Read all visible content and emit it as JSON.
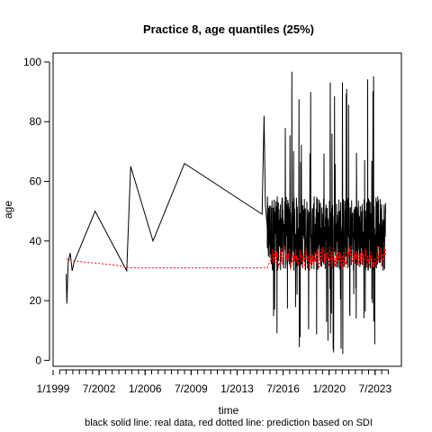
{
  "chart_data": {
    "type": "line",
    "title": "Practice 8, age quantiles (25%)",
    "xlabel": "time",
    "ylabel": "age",
    "caption": "black solid line: real data, red dotted line: prediction based on SDI",
    "xlim": [
      1999.0,
      2025.5
    ],
    "ylim": [
      -2,
      103
    ],
    "y_ticks": [
      0,
      20,
      40,
      60,
      80,
      100
    ],
    "x_ticks": [
      {
        "value": 1999.0,
        "label": "1/1999"
      },
      {
        "value": 2002.5,
        "label": "7/2002"
      },
      {
        "value": 2006.0,
        "label": "1/2006"
      },
      {
        "value": 2009.5,
        "label": "7/2009"
      },
      {
        "value": 2013.0,
        "label": "1/2013"
      },
      {
        "value": 2016.5,
        "label": "7/2016"
      },
      {
        "value": 2020.0,
        "label": "1/2020"
      },
      {
        "value": 2023.5,
        "label": "7/2023"
      }
    ],
    "series": [
      {
        "color": "#000000",
        "style": "solid",
        "dense_region": {
          "x_start": 2015.3,
          "x_end": 2024.3,
          "y_center": 41,
          "y_low_typical": 30,
          "y_high_typical": 55,
          "y_min": 1,
          "y_max": 97
        },
        "x": [
          2000.0,
          2000.05,
          2000.15,
          2000.3,
          2000.45,
          2000.6,
          2002.2,
          2004.6,
          2004.9,
          2006.6,
          2009.0,
          2014.9,
          2015.05,
          2015.15,
          2015.25,
          2015.3
        ],
        "y": [
          29,
          19,
          33,
          36,
          30,
          33,
          50,
          30,
          65,
          40,
          66,
          49,
          82,
          52,
          47,
          44
        ]
      },
      {
        "color": "#ff0000",
        "style": "dotted",
        "dense_region": {
          "x_start": 2015.6,
          "x_end": 2024.3,
          "y_center": 35,
          "y_low_typical": 29,
          "y_high_typical": 40
        },
        "x": [
          2000.0,
          2000.4,
          2001.2,
          2002.5,
          2003.5,
          2005.0,
          2010.0,
          2015.3
        ],
        "y": [
          34,
          33.5,
          33,
          32.5,
          32,
          31,
          31,
          31
        ]
      }
    ]
  }
}
